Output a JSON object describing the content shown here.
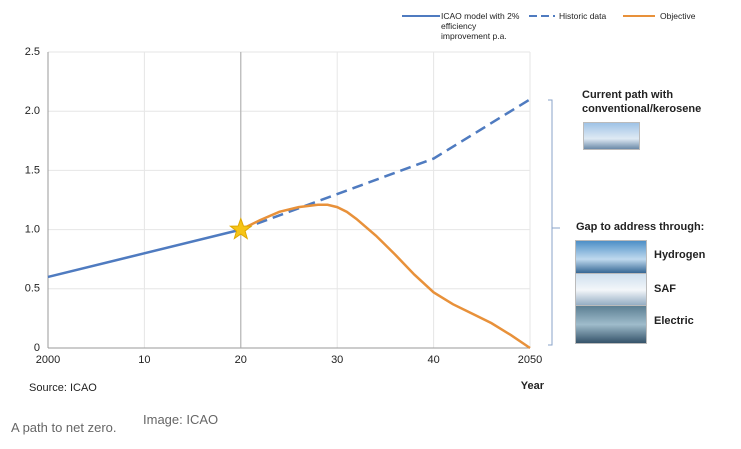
{
  "chart_data": {
    "type": "line",
    "xlabel": "Year",
    "source": "Source: ICAO",
    "xlim": [
      2000,
      2050
    ],
    "ylim": [
      0,
      2.5
    ],
    "xticks": [
      {
        "value": 2000,
        "label": "2000"
      },
      {
        "value": 2010,
        "label": "10"
      },
      {
        "value": 2020,
        "label": "20"
      },
      {
        "value": 2030,
        "label": "30"
      },
      {
        "value": 2040,
        "label": "40"
      },
      {
        "value": 2050,
        "label": "2050"
      }
    ],
    "yticks": [
      {
        "value": 0,
        "label": "0"
      },
      {
        "value": 0.5,
        "label": "0.5"
      },
      {
        "value": 1,
        "label": "1.0"
      },
      {
        "value": 1.5,
        "label": "1.5"
      },
      {
        "value": 2,
        "label": "2.0"
      },
      {
        "value": 2.5,
        "label": "2.5"
      }
    ],
    "grid": true,
    "reference_x": 2020,
    "series": [
      {
        "name": "ICAO model with 2% efficiency improvement p.a.",
        "color": "#4f7bc0",
        "dash": false,
        "x": [
          2000,
          2020
        ],
        "values": [
          0.6,
          1.0
        ]
      },
      {
        "name": "Historic data",
        "color": "#4f7bc0",
        "dash": true,
        "x": [
          2020,
          2030,
          2040,
          2050
        ],
        "values": [
          1.0,
          1.3,
          1.6,
          2.1
        ]
      },
      {
        "name": "Objective",
        "color": "#e8913a",
        "dash": false,
        "x": [
          2020,
          2022,
          2024,
          2026,
          2028,
          2029,
          2030,
          2031,
          2032,
          2034,
          2036,
          2038,
          2040,
          2042,
          2044,
          2046,
          2048,
          2050
        ],
        "values": [
          1.0,
          1.08,
          1.15,
          1.19,
          1.21,
          1.21,
          1.19,
          1.15,
          1.09,
          0.95,
          0.79,
          0.62,
          0.47,
          0.37,
          0.29,
          0.21,
          0.11,
          0.0
        ]
      }
    ],
    "side_panel": {
      "current_path": "Current path with conventional/kerosene",
      "gap_heading": "Gap to address through:",
      "options": [
        "Hydrogen",
        "SAF",
        "Electric"
      ]
    }
  },
  "caption": {
    "text": "A path to net zero.",
    "credit": "Image: ICAO"
  }
}
